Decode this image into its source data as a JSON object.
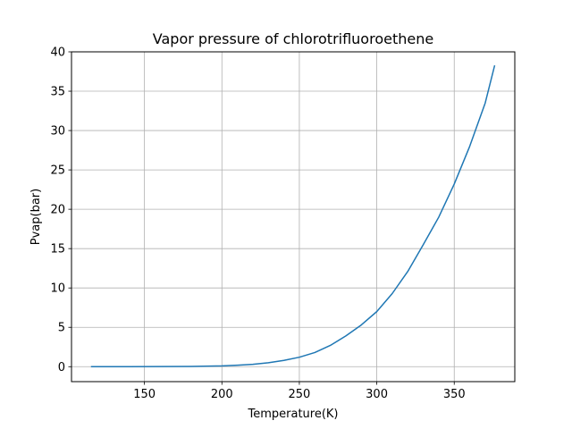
{
  "chart_data": {
    "type": "line",
    "title": "Vapor pressure of chlorotrifluoroethene",
    "xlabel": "Temperature(K)",
    "ylabel": "Pvap(bar)",
    "xlim": [
      102.9,
      389.1
    ],
    "ylim": [
      -1.9,
      40
    ],
    "xticks": [
      150,
      200,
      250,
      300,
      350
    ],
    "yticks": [
      0,
      5,
      10,
      15,
      20,
      25,
      30,
      35,
      40
    ],
    "grid": true,
    "series": [
      {
        "color": "#1f77b4",
        "x": [
          115.9,
          140,
          160,
          180,
          200,
          210,
          220,
          230,
          240,
          250,
          260,
          270,
          280,
          290,
          300,
          310,
          320,
          330,
          340,
          350,
          360,
          370,
          376.0
        ],
        "y": [
          0.0,
          0.0,
          0.01,
          0.03,
          0.1,
          0.18,
          0.3,
          0.5,
          0.8,
          1.2,
          1.8,
          2.7,
          3.9,
          5.3,
          7.0,
          9.3,
          12.1,
          15.5,
          19.0,
          23.2,
          28.0,
          33.5,
          38.2
        ]
      }
    ]
  }
}
